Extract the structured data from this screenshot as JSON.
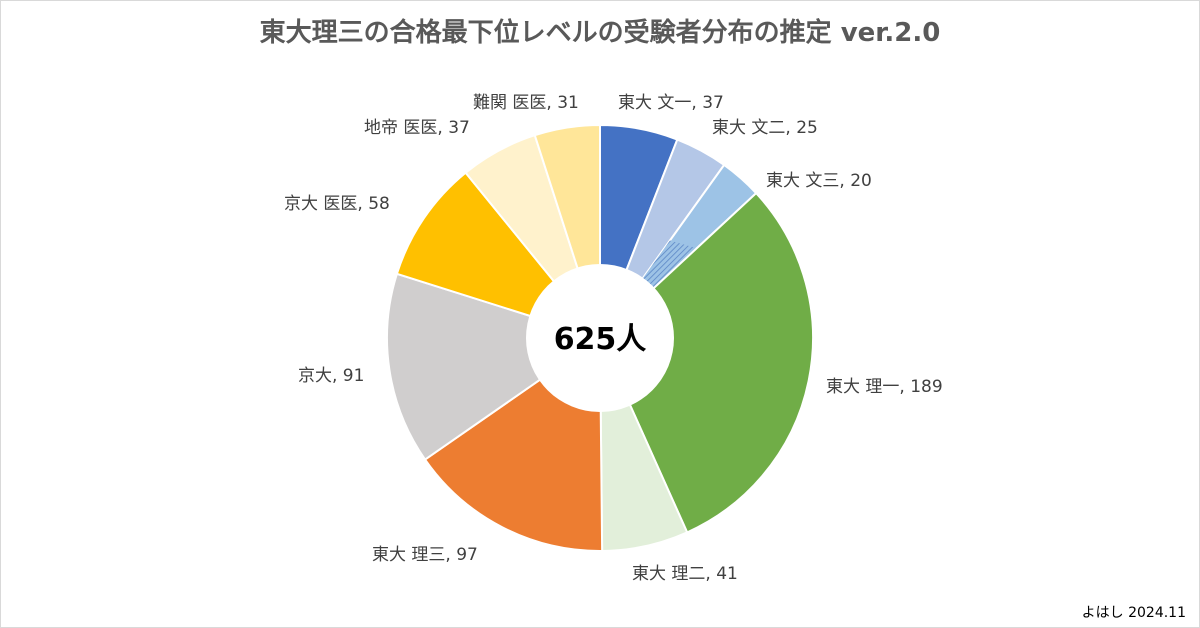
{
  "chart_data": {
    "type": "pie",
    "title": "東大理三の合格最下位レベルの受験者分布の推定 ver.2.0",
    "center_label": "625人",
    "slices": [
      {
        "label": "東大 文一, 37",
        "value": 37,
        "color": "#4472c4"
      },
      {
        "label": "東大 文二, 25",
        "value": 25,
        "color": "#b4c7e7"
      },
      {
        "label": "東大 文三, 20",
        "value": 20,
        "color": "#9dc3e6"
      },
      {
        "label": "東大 理一, 189",
        "value": 189,
        "color": "#70ad47"
      },
      {
        "label": "東大 理二, 41",
        "value": 41,
        "color": "#e2efda"
      },
      {
        "label": "東大 理三, 97",
        "value": 97,
        "color": "#ed7d31"
      },
      {
        "label": "京大, 91",
        "value": 91,
        "color": "#d0cece"
      },
      {
        "label": "京大 医医, 58",
        "value": 58,
        "color": "#ffc000"
      },
      {
        "label": "地帝 医医, 37",
        "value": 37,
        "color": "#fff2cc"
      },
      {
        "label": "難関 医医, 31",
        "value": 31,
        "color": "#ffe699"
      }
    ]
  },
  "credit": "よはし 2024.11"
}
